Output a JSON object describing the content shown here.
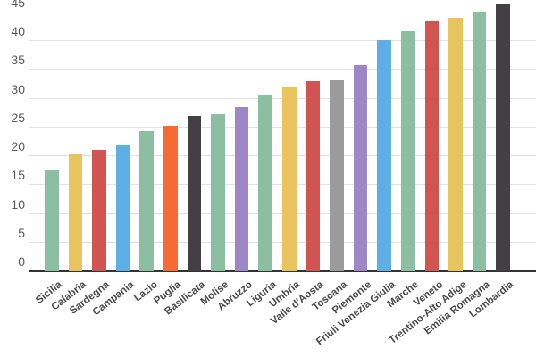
{
  "chart_data": {
    "type": "bar",
    "title": "",
    "xlabel": "",
    "ylabel": "",
    "categories": [
      "Sicilia",
      "Calabria",
      "Sardegna",
      "Campania",
      "Lazio",
      "Puglia",
      "Basilicata",
      "Molise",
      "Abruzzo",
      "Liguria",
      "Umbria",
      "Valle d'Aosta",
      "Toscana",
      "Piemonte",
      "Friuli Venezia Giulia",
      "Marche",
      "Veneto",
      "Trentino-Alto Adige",
      "Emilia Romagna",
      "Lombardia"
    ],
    "values": [
      17.4,
      20.2,
      21.0,
      21.9,
      24.2,
      25.1,
      26.9,
      27.2,
      28.4,
      30.5,
      32.0,
      32.8,
      33.1,
      35.7,
      40.0,
      41.6,
      43.2,
      43.9,
      45.0,
      46.2
    ],
    "bar_color_names": [
      "green",
      "yellow",
      "red",
      "blue",
      "green",
      "orange",
      "dark",
      "green",
      "purple",
      "green",
      "yellow",
      "red",
      "gray",
      "purple",
      "blue",
      "green",
      "red",
      "yellow",
      "green",
      "dark"
    ],
    "palette": {
      "green": "#8cbea1",
      "yellow": "#e7c45e",
      "red": "#d25450",
      "blue": "#5eafe6",
      "orange": "#f56b32",
      "dark": "#434043",
      "purple": "#9d87c6",
      "gray": "#9b9b9b"
    },
    "yticks": [
      0,
      5,
      10,
      15,
      20,
      25,
      30,
      35,
      40,
      45
    ],
    "ytick_labels": [
      "0",
      "5",
      "10",
      "15",
      "20",
      "25",
      "30",
      "35",
      "40",
      "45"
    ],
    "ylim": [
      0,
      46.5
    ],
    "grid": true,
    "legend": false,
    "sort_order": "ascending"
  },
  "styles": {
    "background": "#ffffff",
    "grid_color": "#e2e2e2",
    "axis_line_color": "#333333",
    "y_label_color": "#5a5a5a",
    "x_label_color": "#4a4a4a"
  }
}
